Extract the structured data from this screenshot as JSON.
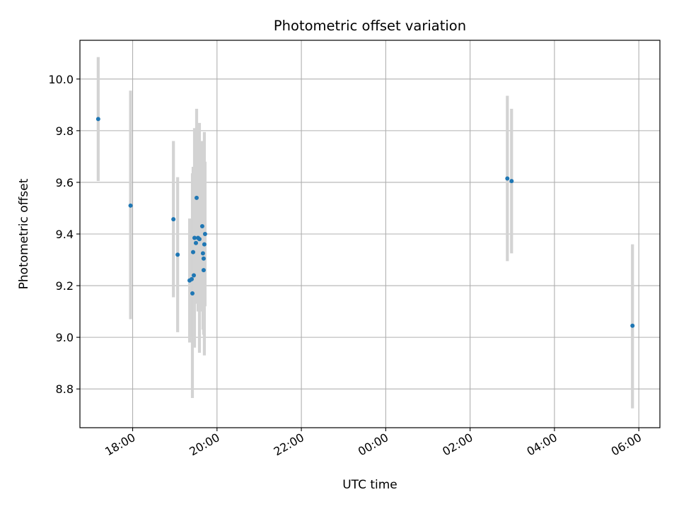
{
  "chart_data": {
    "type": "scatter",
    "title": "Photometric offset variation",
    "xlabel": "UTC time",
    "ylabel": "Photometric offset",
    "x_axis_type": "time",
    "xlim": [
      "2000-01-01T16:45",
      "2000-01-02T06:30"
    ],
    "ylim": [
      8.65,
      10.15
    ],
    "x_ticks": [
      {
        "value": "2000-01-01T18:00",
        "label": "18:00"
      },
      {
        "value": "2000-01-01T20:00",
        "label": "20:00"
      },
      {
        "value": "2000-01-01T22:00",
        "label": "22:00"
      },
      {
        "value": "2000-01-02T00:00",
        "label": "00:00"
      },
      {
        "value": "2000-01-02T02:00",
        "label": "02:00"
      },
      {
        "value": "2000-01-02T04:00",
        "label": "04:00"
      },
      {
        "value": "2000-01-02T06:00",
        "label": "06:00"
      }
    ],
    "y_ticks": [
      {
        "value": 8.8,
        "label": "8.8"
      },
      {
        "value": 9.0,
        "label": "9.0"
      },
      {
        "value": 9.2,
        "label": "9.2"
      },
      {
        "value": 9.4,
        "label": "9.4"
      },
      {
        "value": 9.6,
        "label": "9.6"
      },
      {
        "value": 9.8,
        "label": "9.8"
      },
      {
        "value": 10.0,
        "label": "10.0"
      }
    ],
    "grid": true,
    "colors": {
      "marker": "#1f77b4",
      "errorbar": "#d3d3d3",
      "grid": "#b0b0b0"
    },
    "points": [
      {
        "x": "2000-01-01T17:11",
        "y": 9.845,
        "lo": 9.605,
        "hi": 10.085
      },
      {
        "x": "2000-01-01T17:57",
        "y": 9.51,
        "lo": 9.07,
        "hi": 9.955
      },
      {
        "x": "2000-01-01T18:58",
        "y": 9.457,
        "lo": 9.155,
        "hi": 9.76
      },
      {
        "x": "2000-01-01T19:04",
        "y": 9.32,
        "lo": 9.02,
        "hi": 9.62
      },
      {
        "x": "2000-01-01T19:21",
        "y": 9.22,
        "lo": 8.98,
        "hi": 9.46
      },
      {
        "x": "2000-01-01T19:24",
        "y": 9.225,
        "lo": 9.0,
        "hi": 9.45
      },
      {
        "x": "2000-01-01T19:25",
        "y": 9.17,
        "lo": 8.765,
        "hi": 9.635
      },
      {
        "x": "2000-01-01T19:26",
        "y": 9.33,
        "lo": 9.0,
        "hi": 9.66
      },
      {
        "x": "2000-01-01T19:27",
        "y": 9.24,
        "lo": 8.99,
        "hi": 9.49
      },
      {
        "x": "2000-01-01T19:28",
        "y": 9.385,
        "lo": 8.96,
        "hi": 9.81
      },
      {
        "x": "2000-01-01T19:30",
        "y": 9.365,
        "lo": 9.13,
        "hi": 9.6
      },
      {
        "x": "2000-01-01T19:31",
        "y": 9.54,
        "lo": 9.19,
        "hi": 9.885
      },
      {
        "x": "2000-01-01T19:33",
        "y": 9.385,
        "lo": 9.1,
        "hi": 9.67
      },
      {
        "x": "2000-01-01T19:35",
        "y": 9.38,
        "lo": 8.94,
        "hi": 9.83
      },
      {
        "x": "2000-01-01T19:39",
        "y": 9.43,
        "lo": 9.1,
        "hi": 9.76
      },
      {
        "x": "2000-01-01T19:40",
        "y": 9.325,
        "lo": 9.03,
        "hi": 9.62
      },
      {
        "x": "2000-01-01T19:41",
        "y": 9.26,
        "lo": 9.01,
        "hi": 9.51
      },
      {
        "x": "2000-01-01T19:41",
        "y": 9.305,
        "lo": 9.08,
        "hi": 9.53
      },
      {
        "x": "2000-01-01T19:42",
        "y": 9.36,
        "lo": 8.93,
        "hi": 9.795
      },
      {
        "x": "2000-01-01T19:43",
        "y": 9.4,
        "lo": 9.12,
        "hi": 9.68
      },
      {
        "x": "2000-01-02T02:53",
        "y": 9.615,
        "lo": 9.295,
        "hi": 9.935
      },
      {
        "x": "2000-01-02T02:59",
        "y": 9.605,
        "lo": 9.325,
        "hi": 9.885
      },
      {
        "x": "2000-01-02T05:51",
        "y": 9.045,
        "lo": 8.725,
        "hi": 9.36
      }
    ]
  }
}
